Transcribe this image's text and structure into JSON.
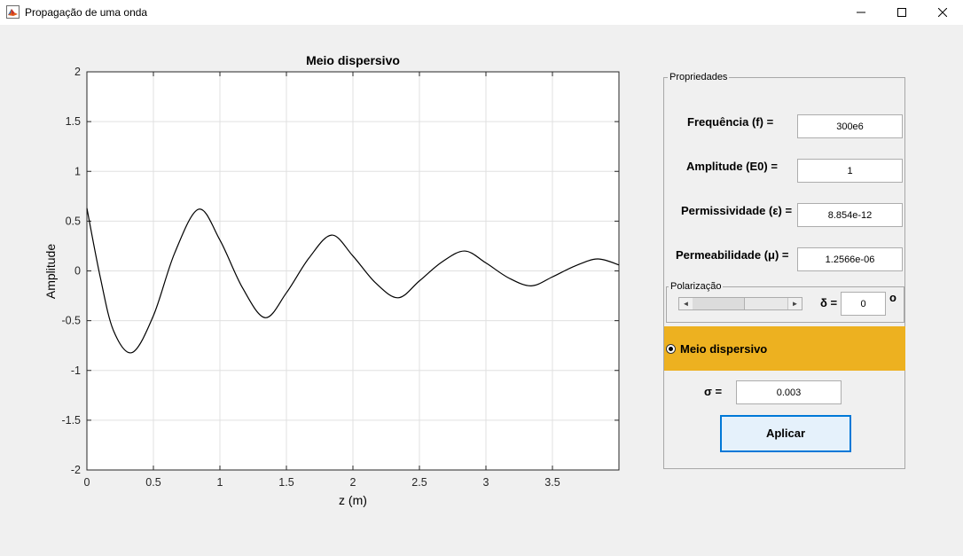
{
  "window": {
    "title": "Propagação de uma onda",
    "controls": {
      "minimize": "minimize-icon",
      "maximize": "maximize-icon",
      "close": "close-icon"
    }
  },
  "plot": {
    "title": "Meio dispersivo",
    "xlabel": "z (m)",
    "ylabel": "Amplitude"
  },
  "chart_data": {
    "type": "line",
    "title": "Meio dispersivo",
    "xlabel": "z (m)",
    "ylabel": "Amplitude",
    "xlim": [
      0,
      4
    ],
    "ylim": [
      -2,
      2
    ],
    "x_ticks": [
      "0",
      "0.5",
      "1",
      "1.5",
      "2",
      "2.5",
      "3",
      "3.5"
    ],
    "y_ticks": [
      "2",
      "1.5",
      "1",
      "0.5",
      "0",
      "-0.5",
      "-1",
      "-1.5",
      "-2"
    ],
    "grid": true,
    "series": [
      {
        "x": [
          0,
          0.1,
          0.2,
          0.34,
          0.5,
          0.66,
          0.84,
          1.0,
          1.17,
          1.34,
          1.5,
          1.67,
          1.84,
          2.0,
          2.17,
          2.34,
          2.5,
          2.67,
          2.84,
          3.0,
          3.17,
          3.34,
          3.5,
          3.67,
          3.84,
          4.0
        ],
        "y": [
          0.63,
          -0.06,
          -0.6,
          -0.82,
          -0.45,
          0.18,
          0.62,
          0.31,
          -0.17,
          -0.47,
          -0.22,
          0.13,
          0.36,
          0.15,
          -0.12,
          -0.27,
          -0.1,
          0.09,
          0.2,
          0.08,
          -0.07,
          -0.15,
          -0.06,
          0.05,
          0.12,
          0.06
        ],
        "color": "#000000"
      }
    ]
  },
  "panel": {
    "title": "Propriedades",
    "freq": {
      "label": "Frequência (f) =",
      "value": "300e6"
    },
    "amp": {
      "label": "Amplitude (E0) =",
      "value": "1"
    },
    "perm": {
      "label": "Permissividade (ε) =",
      "value": "8.854e-12"
    },
    "perme": {
      "label": "Permeabilidade (μ) =",
      "value": "1.2566e-06"
    },
    "polarization": {
      "title": "Polarização",
      "delta_label": "δ =",
      "delta_value": "0",
      "degree": "o",
      "slider_left_icon": "arrow-left-icon",
      "slider_right_icon": "arrow-right-icon"
    },
    "dispersive": {
      "label": "Meio dispersivo",
      "selected": true,
      "color": "#edb120"
    },
    "sigma": {
      "label": "σ =",
      "value": "0.003"
    },
    "apply": "Aplicar"
  }
}
